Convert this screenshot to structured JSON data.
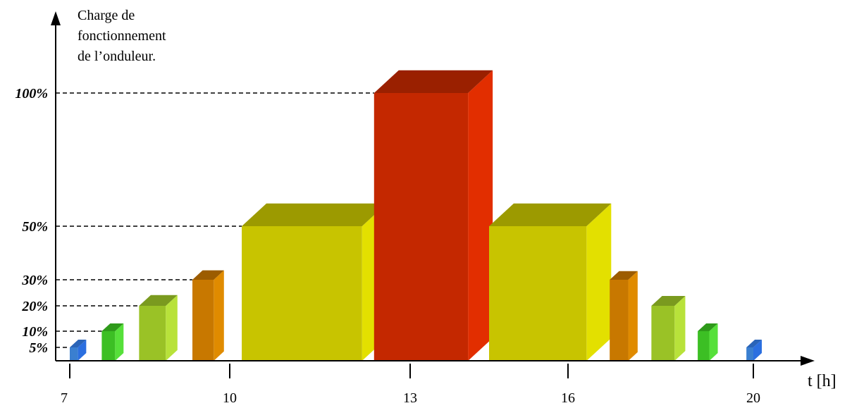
{
  "chart_data": {
    "type": "bar",
    "ylabel_lines": [
      "Charge de",
      "fonctionnement",
      "de l’onduleur."
    ],
    "xlabel": "t [h]",
    "x_ticks": [
      7,
      10,
      13,
      16,
      20
    ],
    "y_ticks": [
      {
        "value": 5,
        "label": "5%"
      },
      {
        "value": 10,
        "label": "10%"
      },
      {
        "value": 20,
        "label": "20%"
      },
      {
        "value": 30,
        "label": "30%"
      },
      {
        "value": 50,
        "label": "50%"
      },
      {
        "value": 100,
        "label": "100%"
      }
    ],
    "bars": [
      {
        "start": 7.0,
        "end": 7.15,
        "value": 5,
        "front": "#3a7fd0",
        "side": "#2b6fe0",
        "top": "#2a64b8"
      },
      {
        "start": 7.6,
        "end": 7.85,
        "value": 10,
        "front": "#3cbf24",
        "side": "#56e03a",
        "top": "#2e9a1a"
      },
      {
        "start": 8.3,
        "end": 8.8,
        "value": 20,
        "front": "#9ac226",
        "side": "#b8e23a",
        "top": "#7a9a1f"
      },
      {
        "start": 9.3,
        "end": 9.7,
        "value": 30,
        "front": "#c87800",
        "side": "#e08b00",
        "top": "#9c5c00"
      },
      {
        "start": 10.2,
        "end": 12.2,
        "value": 50,
        "front": "#c8c400",
        "side": "#e3e000",
        "top": "#9c9a00"
      },
      {
        "start": 12.4,
        "end": 14.1,
        "value": 100,
        "front": "#c42800",
        "side": "#e22e00",
        "top": "#9a2000"
      },
      {
        "start": 14.5,
        "end": 16.4,
        "value": 50,
        "front": "#c8c400",
        "side": "#e3e000",
        "top": "#9c9a00"
      },
      {
        "start": 16.9,
        "end": 17.3,
        "value": 30,
        "front": "#c87800",
        "side": "#e08b00",
        "top": "#9c5c00"
      },
      {
        "start": 17.8,
        "end": 18.3,
        "value": 20,
        "front": "#9ac226",
        "side": "#b8e23a",
        "top": "#7a9a1f"
      },
      {
        "start": 18.8,
        "end": 19.05,
        "value": 10,
        "front": "#3cbf24",
        "side": "#56e03a",
        "top": "#2e9a1a"
      },
      {
        "start": 19.85,
        "end": 20.0,
        "value": 5,
        "front": "#3a7fd0",
        "side": "#2b6fe0",
        "top": "#2a64b8"
      }
    ],
    "grid": "dashed-horizontal",
    "style": "3d-bars"
  }
}
